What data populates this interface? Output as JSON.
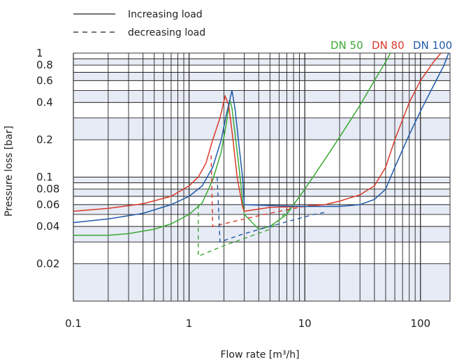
{
  "chart_data": {
    "type": "line",
    "title": "",
    "xlabel": "Flow rate [m³/h]",
    "ylabel": "Pressure loss [bar]",
    "xscale": "log",
    "yscale": "log",
    "xlim": [
      0.1,
      180
    ],
    "ylim": [
      0.01,
      1
    ],
    "xticks": [
      0.1,
      1,
      10,
      100
    ],
    "xtick_labels": [
      "0.1",
      "1",
      "10",
      "100"
    ],
    "yticks": [
      1,
      0.8,
      0.6,
      0.4,
      0.2,
      0.1,
      0.08,
      0.06,
      0.04,
      0.02
    ],
    "ytick_labels": [
      "1",
      "0.8",
      "0.6",
      "0.4",
      "0.2",
      "0.1",
      "0.08",
      "0.06",
      "0.04",
      "0.02"
    ],
    "grid": true,
    "legend": {
      "position": "top-left",
      "entries": [
        {
          "label": "Increasing load",
          "style": "solid"
        },
        {
          "label": "decreasing load",
          "style": "dashed"
        }
      ]
    },
    "series": [
      {
        "name": "DN 50",
        "color": "#3aa935",
        "increasing": [
          [
            0.1,
            0.034
          ],
          [
            0.2,
            0.034
          ],
          [
            0.3,
            0.035
          ],
          [
            0.5,
            0.038
          ],
          [
            0.7,
            0.042
          ],
          [
            1.0,
            0.05
          ],
          [
            1.3,
            0.062
          ],
          [
            1.6,
            0.095
          ],
          [
            1.9,
            0.16
          ],
          [
            2.1,
            0.27
          ],
          [
            2.25,
            0.42
          ],
          [
            2.35,
            0.36
          ],
          [
            2.5,
            0.22
          ],
          [
            2.7,
            0.12
          ],
          [
            2.9,
            0.065
          ],
          [
            3.0,
            0.05
          ],
          [
            4,
            0.038
          ],
          [
            5,
            0.04
          ],
          [
            7,
            0.05
          ],
          [
            8,
            0.06
          ],
          [
            10,
            0.08
          ],
          [
            15,
            0.14
          ],
          [
            20,
            0.21
          ],
          [
            30,
            0.38
          ],
          [
            40,
            0.6
          ],
          [
            50,
            0.85
          ],
          [
            55,
            1.0
          ]
        ],
        "decreasing": [
          [
            1.2,
            0.06
          ],
          [
            1.2,
            0.023
          ],
          [
            2,
            0.028
          ],
          [
            3,
            0.032
          ],
          [
            5,
            0.038
          ],
          [
            8,
            0.06
          ]
        ]
      },
      {
        "name": "DN 80",
        "color": "#d93a2b",
        "increasing": [
          [
            0.1,
            0.053
          ],
          [
            0.2,
            0.056
          ],
          [
            0.4,
            0.061
          ],
          [
            0.7,
            0.07
          ],
          [
            1.0,
            0.085
          ],
          [
            1.2,
            0.1
          ],
          [
            1.4,
            0.13
          ],
          [
            1.6,
            0.2
          ],
          [
            1.85,
            0.3
          ],
          [
            2.05,
            0.45
          ],
          [
            2.2,
            0.38
          ],
          [
            2.4,
            0.2
          ],
          [
            2.6,
            0.1
          ],
          [
            2.9,
            0.058
          ],
          [
            3.0,
            0.053
          ],
          [
            5,
            0.057
          ],
          [
            10,
            0.058
          ],
          [
            15,
            0.06
          ],
          [
            20,
            0.064
          ],
          [
            30,
            0.072
          ],
          [
            40,
            0.085
          ],
          [
            50,
            0.12
          ],
          [
            60,
            0.2
          ],
          [
            80,
            0.4
          ],
          [
            100,
            0.6
          ],
          [
            130,
            0.85
          ],
          [
            150,
            1.0
          ]
        ],
        "decreasing": [
          [
            1.55,
            0.15
          ],
          [
            1.6,
            0.04
          ],
          [
            3,
            0.046
          ],
          [
            6,
            0.053
          ],
          [
            12,
            0.06
          ],
          [
            15,
            0.06
          ]
        ]
      },
      {
        "name": "DN 100",
        "color": "#1f5aa8",
        "increasing": [
          [
            0.1,
            0.043
          ],
          [
            0.2,
            0.046
          ],
          [
            0.4,
            0.051
          ],
          [
            0.7,
            0.06
          ],
          [
            1.0,
            0.07
          ],
          [
            1.3,
            0.085
          ],
          [
            1.6,
            0.12
          ],
          [
            1.9,
            0.2
          ],
          [
            2.1,
            0.32
          ],
          [
            2.35,
            0.5
          ],
          [
            2.5,
            0.35
          ],
          [
            2.7,
            0.18
          ],
          [
            2.9,
            0.1
          ],
          [
            3.0,
            0.06
          ],
          [
            5,
            0.059
          ],
          [
            10,
            0.058
          ],
          [
            20,
            0.058
          ],
          [
            30,
            0.06
          ],
          [
            40,
            0.066
          ],
          [
            50,
            0.08
          ],
          [
            60,
            0.12
          ],
          [
            80,
            0.22
          ],
          [
            100,
            0.34
          ],
          [
            130,
            0.55
          ],
          [
            160,
            0.8
          ],
          [
            175,
            1.0
          ]
        ],
        "decreasing": [
          [
            1.75,
            0.1
          ],
          [
            1.85,
            0.03
          ],
          [
            3,
            0.035
          ],
          [
            6,
            0.042
          ],
          [
            12,
            0.05
          ],
          [
            15,
            0.052
          ]
        ]
      }
    ]
  }
}
